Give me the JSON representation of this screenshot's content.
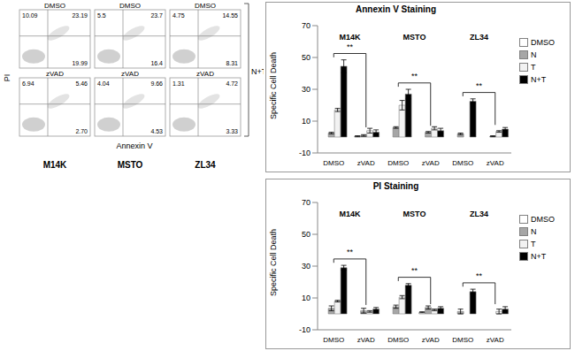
{
  "flow_cytometry": {
    "y_label": "PI",
    "x_label": "Annexin V",
    "bracket_label": "N+T",
    "columns": [
      {
        "name": "M14K",
        "rows": [
          {
            "label": "DMSO",
            "upper_left": 10.09,
            "upper_right": 23.19,
            "lower_right": 19.99
          },
          {
            "label": "zVAD",
            "upper_left": 6.94,
            "upper_right": 5.46,
            "lower_right": {
              "value": 2.7,
              "label": "2.70"
            }
          }
        ]
      },
      {
        "name": "MSTO",
        "rows": [
          {
            "label": "DMSO",
            "upper_left": 5.5,
            "upper_right": 23.7,
            "lower_right": 16.4
          },
          {
            "label": "zVAD",
            "upper_left": 4.04,
            "upper_right": 9.66,
            "lower_right": 4.53
          }
        ]
      },
      {
        "name": "ZL34",
        "rows": [
          {
            "label": "DMSO",
            "upper_left": 4.75,
            "upper_right": 14.55,
            "lower_right": 8.31
          },
          {
            "label": "zVAD",
            "upper_left": 1.31,
            "upper_right": 4.72,
            "lower_right": 3.33
          }
        ]
      }
    ]
  },
  "chart_data": [
    {
      "type": "bar",
      "title": "Annexin V Staining",
      "y_label": "Specific Cell Death",
      "ylim": [
        -10,
        70
      ],
      "yticks": [
        -10,
        10,
        30,
        50,
        70
      ],
      "panels": [
        {
          "title": "M14K",
          "categories": [
            "DMSO",
            "zVAD"
          ],
          "significance": {
            "from": "DMSO",
            "to": "zVAD",
            "label": "**"
          },
          "series": [
            {
              "name": "DMSO",
              "color": "#ffffff",
              "values": [
                0,
                0.5
              ],
              "errors": [
                0.3,
                0.3
              ]
            },
            {
              "name": "N",
              "color": "#a6a6a6",
              "values": [
                2.5,
                1
              ],
              "errors": [
                0.5,
                0.5
              ]
            },
            {
              "name": "T",
              "color": "#f2f2f2",
              "values": [
                17,
                4
              ],
              "errors": [
                1,
                1.5
              ]
            },
            {
              "name": "N+T",
              "color": "#000000",
              "values": [
                44.5,
                3
              ],
              "errors": [
                4,
                1.5
              ]
            }
          ]
        },
        {
          "title": "MSTO",
          "categories": [
            "DMSO",
            "zVAD"
          ],
          "significance": {
            "from": "DMSO",
            "to": "zVAD",
            "label": "**"
          },
          "series": [
            {
              "name": "DMSO",
              "color": "#ffffff",
              "values": [
                0,
                0
              ],
              "errors": [
                0.3,
                0.3
              ]
            },
            {
              "name": "N",
              "color": "#a6a6a6",
              "values": [
                6,
                3
              ],
              "errors": [
                0.5,
                0.5
              ]
            },
            {
              "name": "T",
              "color": "#f2f2f2",
              "values": [
                20,
                5.5
              ],
              "errors": [
                3,
                1
              ]
            },
            {
              "name": "N+T",
              "color": "#000000",
              "values": [
                27,
                4
              ],
              "errors": [
                3,
                1.5
              ]
            }
          ]
        },
        {
          "title": "ZL34",
          "categories": [
            "DMSO",
            "zVAD"
          ],
          "significance": {
            "from": "DMSO",
            "to": "zVAD",
            "label": "**"
          },
          "series": [
            {
              "name": "DMSO",
              "color": "#ffffff",
              "values": [
                0,
                0
              ],
              "errors": [
                0.3,
                0.3
              ]
            },
            {
              "name": "N",
              "color": "#a6a6a6",
              "values": [
                2,
                0.5
              ],
              "errors": [
                0.5,
                0.3
              ]
            },
            {
              "name": "T",
              "color": "#f2f2f2",
              "values": [
                0,
                3.5
              ],
              "errors": [
                0.3,
                0.5
              ]
            },
            {
              "name": "N+T",
              "color": "#000000",
              "values": [
                22.5,
                5
              ],
              "errors": [
                1.5,
                1
              ]
            }
          ]
        }
      ]
    },
    {
      "type": "bar",
      "title": "PI Staining",
      "y_label": "Specific Cell Death",
      "ylim": [
        -10,
        70
      ],
      "yticks": [
        -10,
        10,
        30,
        50,
        70
      ],
      "panels": [
        {
          "title": "M14K",
          "categories": [
            "DMSO",
            "zVAD"
          ],
          "significance": {
            "from": "DMSO",
            "to": "zVAD",
            "label": "**"
          },
          "series": [
            {
              "name": "DMSO",
              "color": "#ffffff",
              "values": [
                0,
                0
              ],
              "errors": [
                0.3,
                0.3
              ]
            },
            {
              "name": "N",
              "color": "#a6a6a6",
              "values": [
                3.5,
                2
              ],
              "errors": [
                1.5,
                1.5
              ]
            },
            {
              "name": "T",
              "color": "#f2f2f2",
              "values": [
                8,
                1.5
              ],
              "errors": [
                0.5,
                0.5
              ]
            },
            {
              "name": "N+T",
              "color": "#000000",
              "values": [
                29,
                3
              ],
              "errors": [
                1.5,
                1
              ]
            }
          ]
        },
        {
          "title": "MSTO",
          "categories": [
            "DMSO",
            "zVAD"
          ],
          "significance": {
            "from": "DMSO",
            "to": "zVAD",
            "label": "**"
          },
          "series": [
            {
              "name": "DMSO",
              "color": "#ffffff",
              "values": [
                0,
                1
              ],
              "errors": [
                0.3,
                0.3
              ]
            },
            {
              "name": "N",
              "color": "#a6a6a6",
              "values": [
                4.5,
                4
              ],
              "errors": [
                1,
                1
              ]
            },
            {
              "name": "T",
              "color": "#f2f2f2",
              "values": [
                10.5,
                2.5
              ],
              "errors": [
                1,
                0.5
              ]
            },
            {
              "name": "N+T",
              "color": "#000000",
              "values": [
                18,
                3.5
              ],
              "errors": [
                1,
                1
              ]
            }
          ]
        },
        {
          "title": "ZL34",
          "categories": [
            "DMSO",
            "zVAD"
          ],
          "significance": {
            "from": "DMSO",
            "to": "zVAD",
            "label": "**"
          },
          "series": [
            {
              "name": "DMSO",
              "color": "#ffffff",
              "values": [
                0,
                0
              ],
              "errors": [
                0.3,
                0.3
              ]
            },
            {
              "name": "N",
              "color": "#a6a6a6",
              "values": [
                1.5,
                0
              ],
              "errors": [
                1.5,
                0.5
              ]
            },
            {
              "name": "T",
              "color": "#f2f2f2",
              "values": [
                0,
                1.5
              ],
              "errors": [
                0.3,
                1.5
              ]
            },
            {
              "name": "N+T",
              "color": "#000000",
              "values": [
                14,
                3
              ],
              "errors": [
                1.5,
                1.5
              ]
            }
          ]
        }
      ]
    }
  ]
}
